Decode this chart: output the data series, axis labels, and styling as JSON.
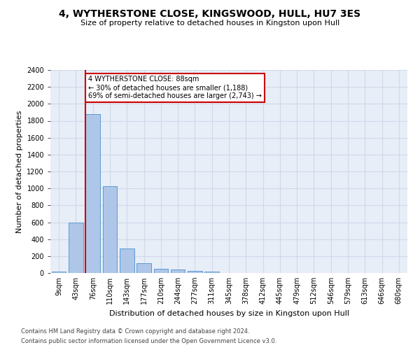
{
  "title": "4, WYTHERSTONE CLOSE, KINGSWOOD, HULL, HU7 3ES",
  "subtitle": "Size of property relative to detached houses in Kingston upon Hull",
  "xlabel": "Distribution of detached houses by size in Kingston upon Hull",
  "ylabel": "Number of detached properties",
  "bin_labels": [
    "9sqm",
    "43sqm",
    "76sqm",
    "110sqm",
    "143sqm",
    "177sqm",
    "210sqm",
    "244sqm",
    "277sqm",
    "311sqm",
    "345sqm",
    "378sqm",
    "412sqm",
    "445sqm",
    "479sqm",
    "512sqm",
    "546sqm",
    "579sqm",
    "613sqm",
    "646sqm",
    "680sqm"
  ],
  "bar_heights": [
    20,
    600,
    1880,
    1030,
    290,
    115,
    48,
    40,
    28,
    18,
    0,
    0,
    0,
    0,
    0,
    0,
    0,
    0,
    0,
    0,
    0
  ],
  "bar_color": "#aec6e8",
  "bar_edgecolor": "#5b9bd5",
  "annotation_text": "4 WYTHERSTONE CLOSE: 88sqm\n← 30% of detached houses are smaller (1,188)\n69% of semi-detached houses are larger (2,743) →",
  "vline_color": "#cc0000",
  "annotation_box_edgecolor": "#cc0000",
  "annotation_box_facecolor": "#ffffff",
  "ylim": [
    0,
    2400
  ],
  "yticks": [
    0,
    200,
    400,
    600,
    800,
    1000,
    1200,
    1400,
    1600,
    1800,
    2000,
    2200,
    2400
  ],
  "grid_color": "#d0d8e8",
  "bg_color": "#e8eef8",
  "title_fontsize": 10,
  "subtitle_fontsize": 8,
  "ylabel_fontsize": 8,
  "xlabel_fontsize": 8,
  "tick_fontsize": 7,
  "annotation_fontsize": 7,
  "footnote_fontsize": 6,
  "footnote1": "Contains HM Land Registry data © Crown copyright and database right 2024.",
  "footnote2": "Contains public sector information licensed under the Open Government Licence v3.0."
}
